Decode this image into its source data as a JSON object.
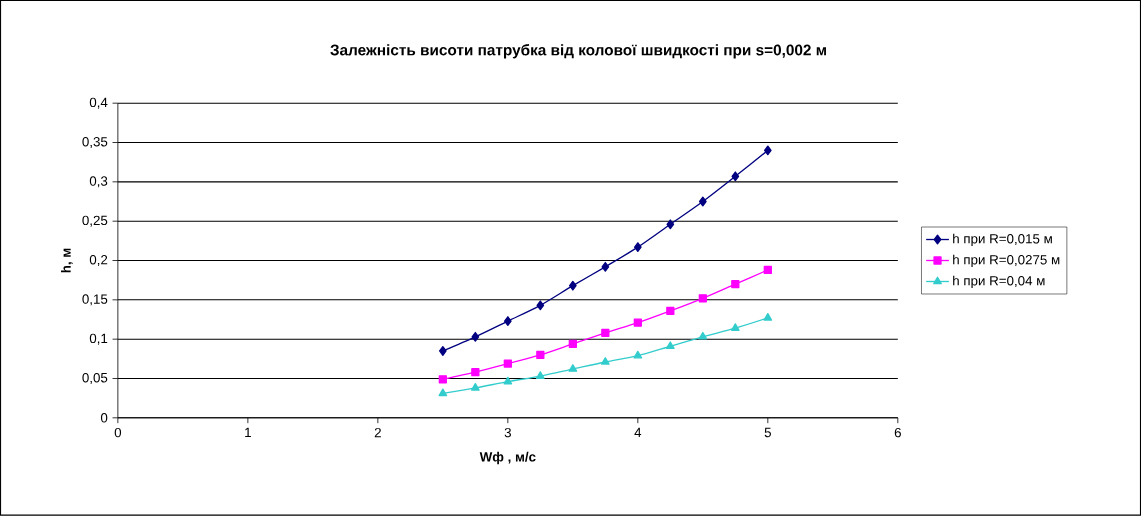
{
  "chart_data": {
    "type": "line",
    "title": "Залежність висоти патрубка від колової швидкості при s=0,002 м",
    "xlabel": "Wф  , м/с",
    "ylabel": "h, м",
    "x": [
      2.5,
      2.75,
      3,
      3.25,
      3.5,
      3.75,
      4,
      4.25,
      4.5,
      4.75,
      5
    ],
    "series": [
      {
        "name": "h при R=0,015 м",
        "color": "#000080",
        "marker": "diamond",
        "values": [
          0.085,
          0.103,
          0.123,
          0.143,
          0.168,
          0.192,
          0.217,
          0.246,
          0.275,
          0.307,
          0.34
        ]
      },
      {
        "name": "h при R=0,0275 м",
        "color": "#ff00ff",
        "marker": "square",
        "values": [
          0.049,
          0.058,
          0.069,
          0.08,
          0.094,
          0.108,
          0.121,
          0.136,
          0.152,
          0.17,
          0.188
        ]
      },
      {
        "name": "h при R=0,04 м",
        "color": "#33cccc",
        "marker": "triangle",
        "values": [
          0.031,
          0.038,
          0.046,
          0.053,
          0.062,
          0.071,
          0.079,
          0.091,
          0.103,
          0.114,
          0.127
        ]
      }
    ],
    "xlim": [
      0,
      6
    ],
    "xticks": [
      0,
      1,
      2,
      3,
      4,
      5,
      6
    ],
    "ylim": [
      0,
      0.4
    ],
    "yticks": [
      {
        "value": 0,
        "label": "0"
      },
      {
        "value": 0.05,
        "label": "0,05"
      },
      {
        "value": 0.1,
        "label": "0,1"
      },
      {
        "value": 0.15,
        "label": "0,15"
      },
      {
        "value": 0.2,
        "label": "0,2"
      },
      {
        "value": 0.25,
        "label": "0,25"
      },
      {
        "value": 0.3,
        "label": "0,3"
      },
      {
        "value": 0.35,
        "label": "0,35"
      },
      {
        "value": 0.4,
        "label": "0,4"
      }
    ],
    "grid": "y",
    "legend": "right",
    "line_style": "solid"
  }
}
